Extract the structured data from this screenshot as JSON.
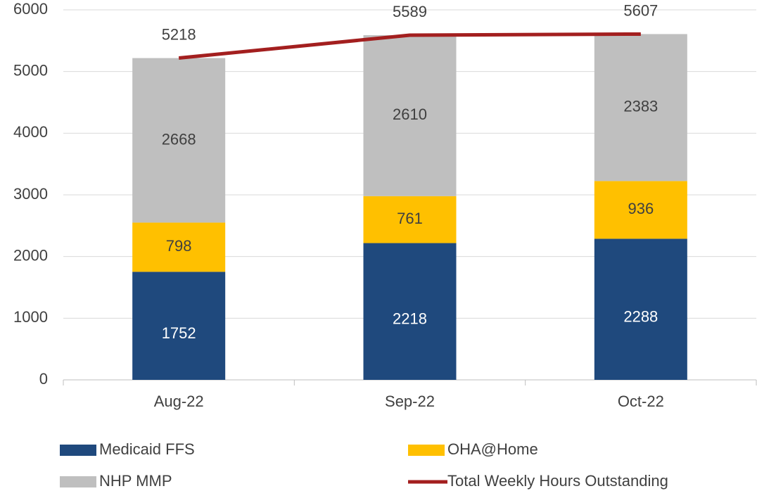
{
  "chart_data": {
    "type": "bar",
    "stacked": true,
    "categories": [
      "Aug-22",
      "Sep-22",
      "Oct-22"
    ],
    "series": [
      {
        "name": "Medicaid FFS",
        "color": "#1f497d",
        "values": [
          1752,
          2218,
          2288
        ]
      },
      {
        "name": "OHA@Home",
        "color": "#ffc000",
        "values": [
          798,
          761,
          936
        ]
      },
      {
        "name": "NHP MMP",
        "color": "#bfbfbf",
        "values": [
          2668,
          2610,
          2383
        ]
      },
      {
        "name": "Total Weekly Hours Outstanding",
        "color": "#a31f1f",
        "type": "line",
        "values": [
          5218,
          5589,
          5607
        ]
      }
    ],
    "ylim": [
      0,
      6000
    ],
    "yticks": [
      0,
      1000,
      2000,
      3000,
      4000,
      5000,
      6000
    ],
    "grid": true,
    "legend": "bottom"
  }
}
